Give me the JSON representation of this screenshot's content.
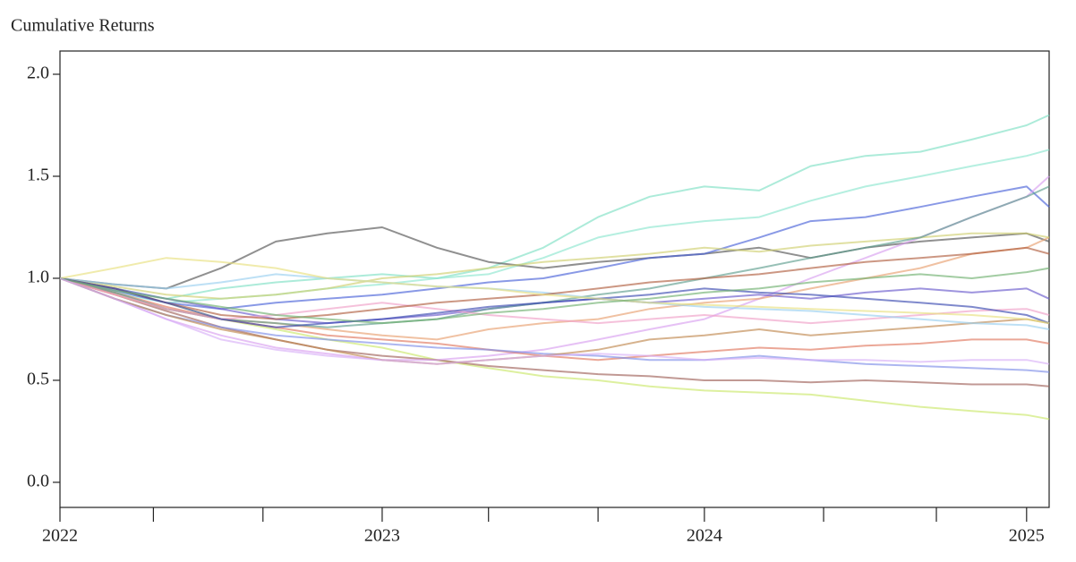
{
  "chart_data": {
    "type": "line",
    "title": "Cumulative Returns",
    "x": [
      2022,
      2022.17,
      2022.33,
      2022.5,
      2022.67,
      2022.83,
      2023,
      2023.17,
      2023.33,
      2023.5,
      2023.67,
      2023.83,
      2024,
      2024.17,
      2024.33,
      2024.5,
      2024.67,
      2024.83,
      2025,
      2025.07
    ],
    "xlim": [
      2022,
      2025.07
    ],
    "xticks": [
      2022,
      2023,
      2024,
      2025
    ],
    "xminorticks": [
      2022.29,
      2022.63,
      2023.33,
      2023.67,
      2024.37,
      2024.72
    ],
    "ylim": [
      -0.123,
      2.114
    ],
    "yticks": [
      {
        "value": 0,
        "label": "0.0"
      },
      {
        "value": 0.5,
        "label": "0.5"
      },
      {
        "value": 1,
        "label": "1.0"
      },
      {
        "value": 1.5,
        "label": "1.5"
      },
      {
        "value": 2,
        "label": "2.0"
      }
    ],
    "line_opacity": 0.65,
    "series": [
      {
        "color": "#7fe0c4",
        "values": [
          1.0,
          0.95,
          0.9,
          0.95,
          0.98,
          1.0,
          1.02,
          1.0,
          1.05,
          1.15,
          1.3,
          1.4,
          1.45,
          1.43,
          1.55,
          1.6,
          1.62,
          1.68,
          1.75,
          1.8
        ]
      },
      {
        "color": "#8ee6cf",
        "values": [
          1.0,
          0.93,
          0.88,
          0.9,
          0.92,
          0.95,
          0.97,
          1.0,
          1.02,
          1.1,
          1.2,
          1.25,
          1.28,
          1.3,
          1.38,
          1.45,
          1.5,
          1.55,
          1.6,
          1.63
        ]
      },
      {
        "color": "#555555",
        "values": [
          1.0,
          0.97,
          0.95,
          1.05,
          1.18,
          1.22,
          1.25,
          1.15,
          1.08,
          1.05,
          1.08,
          1.1,
          1.12,
          1.15,
          1.1,
          1.15,
          1.18,
          1.2,
          1.22,
          1.18
        ]
      },
      {
        "color": "#cbe86b",
        "values": [
          1.0,
          0.95,
          0.88,
          0.8,
          0.75,
          0.7,
          0.66,
          0.6,
          0.56,
          0.52,
          0.5,
          0.47,
          0.45,
          0.44,
          0.43,
          0.4,
          0.37,
          0.35,
          0.33,
          0.31
        ]
      },
      {
        "color": "#a0625a",
        "values": [
          1.0,
          0.92,
          0.84,
          0.76,
          0.7,
          0.65,
          0.62,
          0.6,
          0.57,
          0.55,
          0.53,
          0.52,
          0.5,
          0.5,
          0.49,
          0.5,
          0.49,
          0.48,
          0.48,
          0.47
        ]
      },
      {
        "color": "#4a62d8",
        "values": [
          1.0,
          0.94,
          0.88,
          0.85,
          0.88,
          0.9,
          0.92,
          0.95,
          0.98,
          1.0,
          1.05,
          1.1,
          1.12,
          1.2,
          1.28,
          1.3,
          1.35,
          1.4,
          1.45,
          1.35
        ]
      },
      {
        "color": "#d8a0f0",
        "values": [
          1.0,
          0.9,
          0.8,
          0.72,
          0.66,
          0.63,
          0.6,
          0.6,
          0.62,
          0.65,
          0.7,
          0.75,
          0.8,
          0.9,
          1.0,
          1.1,
          1.2,
          1.3,
          1.4,
          1.5
        ]
      },
      {
        "color": "#e8a070",
        "values": [
          1.0,
          0.92,
          0.85,
          0.8,
          0.78,
          0.75,
          0.72,
          0.7,
          0.75,
          0.78,
          0.8,
          0.85,
          0.88,
          0.9,
          0.95,
          1.0,
          1.05,
          1.12,
          1.15,
          1.2
        ]
      },
      {
        "color": "#6a5acd",
        "values": [
          1.0,
          0.95,
          0.9,
          0.85,
          0.8,
          0.78,
          0.8,
          0.82,
          0.85,
          0.88,
          0.9,
          0.88,
          0.9,
          0.92,
          0.9,
          0.93,
          0.95,
          0.93,
          0.95,
          0.9
        ]
      },
      {
        "color": "#e07860",
        "values": [
          1.0,
          0.93,
          0.86,
          0.8,
          0.76,
          0.72,
          0.7,
          0.68,
          0.65,
          0.62,
          0.6,
          0.62,
          0.64,
          0.66,
          0.65,
          0.67,
          0.68,
          0.7,
          0.7,
          0.68
        ]
      },
      {
        "color": "#7f8fe8",
        "values": [
          1.0,
          0.9,
          0.82,
          0.76,
          0.72,
          0.7,
          0.68,
          0.66,
          0.65,
          0.63,
          0.62,
          0.6,
          0.6,
          0.62,
          0.6,
          0.58,
          0.57,
          0.56,
          0.55,
          0.54
        ]
      },
      {
        "color": "#d0d070",
        "values": [
          1.0,
          0.96,
          0.92,
          0.9,
          0.92,
          0.95,
          1.0,
          1.02,
          1.05,
          1.08,
          1.1,
          1.12,
          1.15,
          1.13,
          1.16,
          1.18,
          1.2,
          1.22,
          1.22,
          1.2
        ]
      },
      {
        "color": "#5f9e8f",
        "values": [
          1.0,
          0.93,
          0.85,
          0.8,
          0.78,
          0.76,
          0.78,
          0.8,
          0.85,
          0.88,
          0.92,
          0.95,
          1.0,
          1.05,
          1.1,
          1.15,
          1.2,
          1.3,
          1.4,
          1.45
        ]
      },
      {
        "color": "#c08850",
        "values": [
          1.0,
          0.9,
          0.82,
          0.75,
          0.7,
          0.65,
          0.6,
          0.58,
          0.6,
          0.62,
          0.65,
          0.7,
          0.72,
          0.75,
          0.72,
          0.74,
          0.76,
          0.78,
          0.8,
          0.78
        ]
      },
      {
        "color": "#f0a0c8",
        "values": [
          1.0,
          0.92,
          0.85,
          0.8,
          0.82,
          0.85,
          0.88,
          0.85,
          0.82,
          0.8,
          0.78,
          0.8,
          0.82,
          0.8,
          0.78,
          0.8,
          0.82,
          0.84,
          0.85,
          0.82
        ]
      },
      {
        "color": "#9ad0f0",
        "values": [
          1.0,
          0.97,
          0.95,
          0.98,
          1.02,
          1.0,
          0.98,
          0.96,
          0.95,
          0.93,
          0.9,
          0.88,
          0.86,
          0.85,
          0.84,
          0.82,
          0.8,
          0.78,
          0.77,
          0.75
        ]
      },
      {
        "color": "#b06040",
        "values": [
          1.0,
          0.95,
          0.88,
          0.82,
          0.8,
          0.82,
          0.85,
          0.88,
          0.9,
          0.92,
          0.95,
          0.98,
          1.0,
          1.02,
          1.05,
          1.08,
          1.1,
          1.12,
          1.15,
          1.12
        ]
      },
      {
        "color": "#3a4ab0",
        "values": [
          1.0,
          0.95,
          0.88,
          0.8,
          0.76,
          0.78,
          0.8,
          0.83,
          0.86,
          0.88,
          0.9,
          0.92,
          0.95,
          0.93,
          0.92,
          0.9,
          0.88,
          0.86,
          0.82,
          0.78
        ]
      },
      {
        "color": "#e8e080",
        "values": [
          1.0,
          1.05,
          1.1,
          1.08,
          1.05,
          1.0,
          0.98,
          0.96,
          0.95,
          0.92,
          0.9,
          0.88,
          0.87,
          0.86,
          0.85,
          0.84,
          0.83,
          0.82,
          0.8,
          0.78
        ]
      },
      {
        "color": "#70b070",
        "values": [
          1.0,
          0.94,
          0.9,
          0.86,
          0.82,
          0.8,
          0.78,
          0.8,
          0.83,
          0.85,
          0.88,
          0.9,
          0.93,
          0.95,
          0.98,
          1.0,
          1.02,
          1.0,
          1.03,
          1.05
        ]
      },
      {
        "color": "#d8b0f8",
        "values": [
          1.0,
          0.9,
          0.8,
          0.7,
          0.65,
          0.62,
          0.6,
          0.58,
          0.6,
          0.62,
          0.63,
          0.62,
          0.6,
          0.61,
          0.6,
          0.6,
          0.59,
          0.6,
          0.6,
          0.58
        ]
      }
    ]
  }
}
